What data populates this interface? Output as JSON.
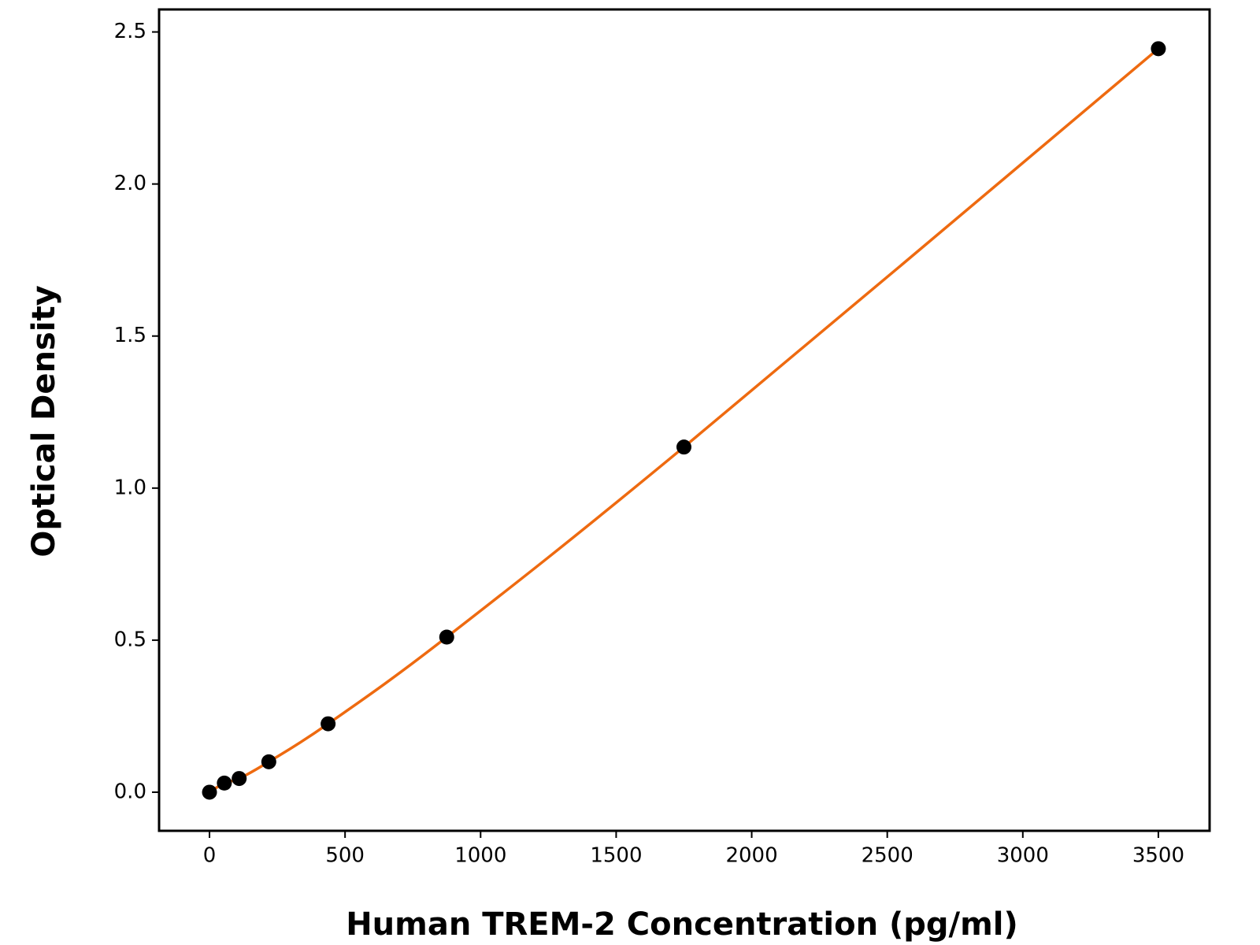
{
  "chart_data": {
    "type": "scatter",
    "x_label": "Human TREM-2 Concentration (pg/ml)",
    "y_label": "Optical Density",
    "x": [
      0,
      54.7,
      109.4,
      218.75,
      437.5,
      875,
      1750,
      3500
    ],
    "series": [
      {
        "color": "#000000",
        "line_color": "#ee6a10",
        "values": [
          0.0,
          0.03,
          0.045,
          0.1,
          0.225,
          0.51,
          1.135,
          2.445
        ]
      }
    ],
    "fit_line": true,
    "xlim": [
      -186,
      3689
    ],
    "ylim": [
      -0.127,
      2.574
    ],
    "xticks": [
      0,
      500,
      1000,
      1500,
      2000,
      2500,
      3000,
      3500
    ],
    "yticks": [
      {
        "value": 0,
        "label": "0.0"
      },
      {
        "value": 0.5,
        "label": "0.5"
      },
      {
        "value": 1,
        "label": "1.0"
      },
      {
        "value": 1.5,
        "label": "1.5"
      },
      {
        "value": 2,
        "label": "2.0"
      },
      {
        "value": 2.5,
        "label": "2.5"
      }
    ],
    "grid": false
  }
}
